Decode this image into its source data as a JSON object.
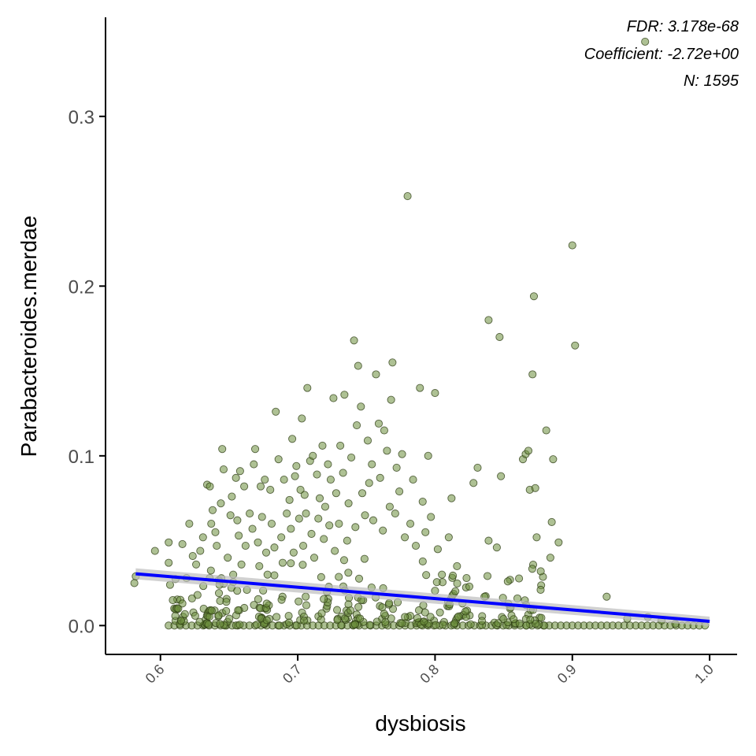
{
  "colors": {
    "point_fill": "#6b8e3d",
    "point_stroke": "#2b3a12",
    "fit_line": "#0000ff",
    "ribbon": "#bdbdbd",
    "axis": "#000000"
  },
  "chart_data": {
    "type": "scatter",
    "title": "",
    "xlabel": "dysbiosis",
    "ylabel": "Parabacteroides.merdae",
    "xlim": [
      0.56,
      1.02
    ],
    "ylim": [
      -0.017,
      0.363
    ],
    "x_ticks": [
      0.6,
      0.7,
      0.8,
      0.9,
      1.0
    ],
    "x_tick_labels": [
      "0.6",
      "0.7",
      "0.8",
      "0.9",
      "1.0"
    ],
    "y_ticks": [
      0.0,
      0.1,
      0.2,
      0.3
    ],
    "y_tick_labels": [
      "0.0",
      "0.1",
      "0.2",
      "0.3"
    ],
    "grid": false,
    "annotations": [
      "FDR: 3.178e-68",
      "Coefficient: -2.72e+00",
      "N: 1595"
    ],
    "fit_line": {
      "x": [
        0.582,
        1.0
      ],
      "y": [
        0.0305,
        0.0025
      ]
    },
    "series": [
      {
        "points": [
          [
            0.582,
            0.029
          ],
          [
            0.581,
            0.025
          ],
          [
            0.596,
            0.044
          ],
          [
            0.606,
            0.049
          ],
          [
            0.606,
            0.037
          ],
          [
            0.607,
            0.024
          ],
          [
            0.609,
            0.015
          ],
          [
            0.613,
            0.01
          ],
          [
            0.615,
            0.003
          ],
          [
            0.616,
            0.013
          ],
          [
            0.616,
            0.048
          ],
          [
            0.619,
            0.028
          ],
          [
            0.621,
            0.06
          ],
          [
            0.623,
            0.016
          ],
          [
            0.626,
            0.036
          ],
          [
            0.627,
            0.018
          ],
          [
            0.629,
            0.044
          ],
          [
            0.631,
            0.052
          ],
          [
            0.634,
            0.083
          ],
          [
            0.636,
            0.082
          ],
          [
            0.637,
            0.06
          ],
          [
            0.638,
            0.068
          ],
          [
            0.64,
            0.055
          ],
          [
            0.641,
            0.047
          ],
          [
            0.643,
            0.024
          ],
          [
            0.644,
            0.072
          ],
          [
            0.645,
            0.104
          ],
          [
            0.646,
            0.092
          ],
          [
            0.648,
            0.014
          ],
          [
            0.649,
            0.04
          ],
          [
            0.651,
            0.065
          ],
          [
            0.652,
            0.076
          ],
          [
            0.653,
            0.03
          ],
          [
            0.655,
            0.087
          ],
          [
            0.656,
            0.062
          ],
          [
            0.657,
            0.053
          ],
          [
            0.658,
            0.091
          ],
          [
            0.659,
            0.036
          ],
          [
            0.661,
            0.082
          ],
          [
            0.662,
            0.047
          ],
          [
            0.663,
            0.021
          ],
          [
            0.665,
            0.066
          ],
          [
            0.667,
            0.057
          ],
          [
            0.668,
            0.095
          ],
          [
            0.669,
            0.104
          ],
          [
            0.671,
            0.049
          ],
          [
            0.672,
            0.035
          ],
          [
            0.673,
            0.082
          ],
          [
            0.674,
            0.064
          ],
          [
            0.676,
            0.086
          ],
          [
            0.677,
            0.043
          ],
          [
            0.678,
            0.03
          ],
          [
            0.68,
            0.08
          ],
          [
            0.681,
            0.06
          ],
          [
            0.683,
            0.046
          ],
          [
            0.684,
            0.126
          ],
          [
            0.686,
            0.098
          ],
          [
            0.688,
            0.052
          ],
          [
            0.689,
            0.037
          ],
          [
            0.69,
            0.086
          ],
          [
            0.692,
            0.066
          ],
          [
            0.694,
            0.074
          ],
          [
            0.695,
            0.057
          ],
          [
            0.696,
            0.11
          ],
          [
            0.697,
            0.043
          ],
          [
            0.698,
            0.088
          ],
          [
            0.699,
            0.094
          ],
          [
            0.701,
            0.063
          ],
          [
            0.702,
            0.08
          ],
          [
            0.703,
            0.122
          ],
          [
            0.704,
            0.047
          ],
          [
            0.705,
            0.077
          ],
          [
            0.706,
            0.066
          ],
          [
            0.707,
            0.14
          ],
          [
            0.709,
            0.097
          ],
          [
            0.71,
            0.054
          ],
          [
            0.711,
            0.1
          ],
          [
            0.712,
            0.04
          ],
          [
            0.714,
            0.089
          ],
          [
            0.715,
            0.063
          ],
          [
            0.716,
            0.075
          ],
          [
            0.718,
            0.106
          ],
          [
            0.719,
            0.051
          ],
          [
            0.72,
            0.07
          ],
          [
            0.722,
            0.095
          ],
          [
            0.723,
            0.059
          ],
          [
            0.724,
            0.086
          ],
          [
            0.726,
            0.134
          ],
          [
            0.727,
            0.044
          ],
          [
            0.728,
            0.078
          ],
          [
            0.73,
            0.06
          ],
          [
            0.731,
            0.106
          ],
          [
            0.733,
            0.09
          ],
          [
            0.734,
            0.136
          ],
          [
            0.736,
            0.05
          ],
          [
            0.737,
            0.072
          ],
          [
            0.739,
            0.099
          ],
          [
            0.741,
            0.168
          ],
          [
            0.742,
            0.058
          ],
          [
            0.743,
            0.118
          ],
          [
            0.744,
            0.153
          ],
          [
            0.746,
            0.129
          ],
          [
            0.747,
            0.078
          ],
          [
            0.749,
            0.065
          ],
          [
            0.751,
            0.109
          ],
          [
            0.752,
            0.084
          ],
          [
            0.754,
            0.095
          ],
          [
            0.755,
            0.062
          ],
          [
            0.757,
            0.148
          ],
          [
            0.759,
            0.119
          ],
          [
            0.76,
            0.087
          ],
          [
            0.762,
            0.056
          ],
          [
            0.763,
            0.115
          ],
          [
            0.765,
            0.103
          ],
          [
            0.767,
            0.07
          ],
          [
            0.768,
            0.133
          ],
          [
            0.769,
            0.155
          ],
          [
            0.771,
            0.066
          ],
          [
            0.772,
            0.093
          ],
          [
            0.774,
            0.079
          ],
          [
            0.776,
            0.101
          ],
          [
            0.778,
            0.052
          ],
          [
            0.78,
            0.253
          ],
          [
            0.782,
            0.06
          ],
          [
            0.784,
            0.086
          ],
          [
            0.786,
            0.047
          ],
          [
            0.789,
            0.14
          ],
          [
            0.791,
            0.073
          ],
          [
            0.793,
            0.055
          ],
          [
            0.795,
            0.1
          ],
          [
            0.797,
            0.064
          ],
          [
            0.8,
            0.137
          ],
          [
            0.802,
            0.045
          ],
          [
            0.805,
            0.03
          ],
          [
            0.81,
            0.052
          ],
          [
            0.812,
            0.075
          ],
          [
            0.816,
            0.035
          ],
          [
            0.82,
            0.013
          ],
          [
            0.825,
            0.023
          ],
          [
            0.828,
            0.084
          ],
          [
            0.831,
            0.093
          ],
          [
            0.836,
            0.017
          ],
          [
            0.839,
            0.05
          ],
          [
            0.839,
            0.18
          ],
          [
            0.845,
            0.046
          ],
          [
            0.847,
            0.17
          ],
          [
            0.848,
            0.088
          ],
          [
            0.853,
            0.026
          ],
          [
            0.86,
            0.016
          ],
          [
            0.864,
            0.098
          ],
          [
            0.866,
            0.101
          ],
          [
            0.868,
            0.103
          ],
          [
            0.869,
            0.08
          ],
          [
            0.871,
            0.148
          ],
          [
            0.872,
            0.194
          ],
          [
            0.873,
            0.081
          ],
          [
            0.874,
            0.052
          ],
          [
            0.877,
            0.032
          ],
          [
            0.881,
            0.115
          ],
          [
            0.884,
            0.04
          ],
          [
            0.885,
            0.061
          ],
          [
            0.886,
            0.098
          ],
          [
            0.89,
            0.049
          ],
          [
            0.9,
            0.224
          ],
          [
            0.902,
            0.165
          ],
          [
            0.925,
            0.017
          ],
          [
            0.94,
            0.004
          ],
          [
            0.953,
            0.344
          ],
          [
            0.955,
            0.005
          ],
          [
            0.965,
            0.003
          ],
          [
            0.975,
            0.001
          ]
        ]
      }
    ]
  }
}
